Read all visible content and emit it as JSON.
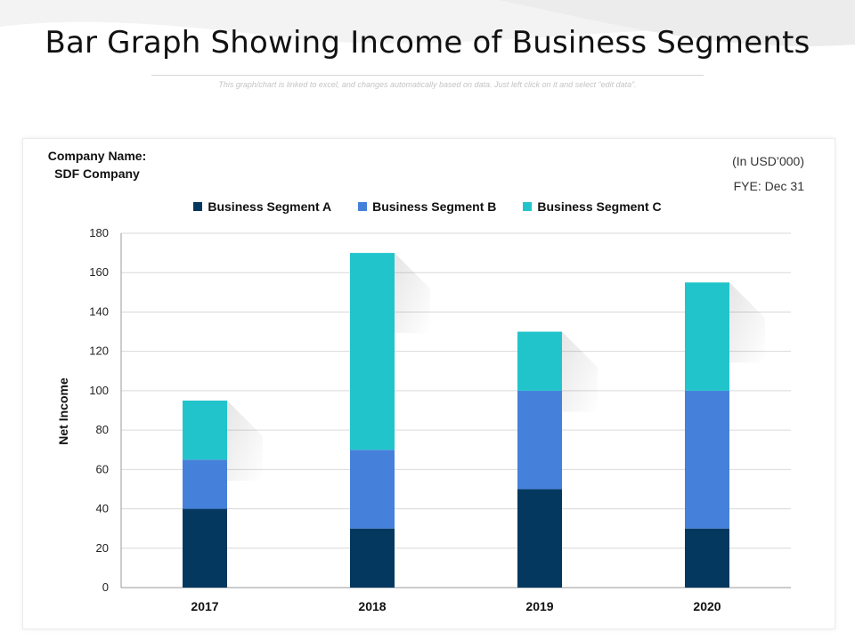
{
  "slide": {
    "title": "Bar Graph Showing Income of Business Segments",
    "subtitle": "This graph/chart is linked to excel, and changes automatically based on data. Just left click on it and select “edit data”."
  },
  "company": {
    "name_label": "Company Name:",
    "name_value": "SDF Company"
  },
  "units": {
    "currency": "(In USD’000)",
    "fye": "FYE: Dec 31"
  },
  "colors": {
    "segment_a": "#04385e",
    "segment_b": "#4581db",
    "segment_c": "#22c4cc",
    "grid": "#d9d9d9",
    "axis": "#9a9a9a"
  },
  "chart_data": {
    "type": "bar",
    "stacked": true,
    "title": "",
    "xlabel": "",
    "ylabel": "Net Income",
    "categories": [
      "2017",
      "2018",
      "2019",
      "2020"
    ],
    "series": [
      {
        "name": "Business Segment A",
        "values": [
          40,
          30,
          50,
          30
        ]
      },
      {
        "name": "Business Segment B",
        "values": [
          25,
          40,
          50,
          70
        ]
      },
      {
        "name": "Business Segment C",
        "values": [
          30,
          100,
          30,
          55
        ]
      }
    ],
    "ylim": [
      0,
      180
    ],
    "yticks": [
      0,
      20,
      40,
      60,
      80,
      100,
      120,
      140,
      160,
      180
    ],
    "grid": true,
    "legend_position": "top-center"
  }
}
